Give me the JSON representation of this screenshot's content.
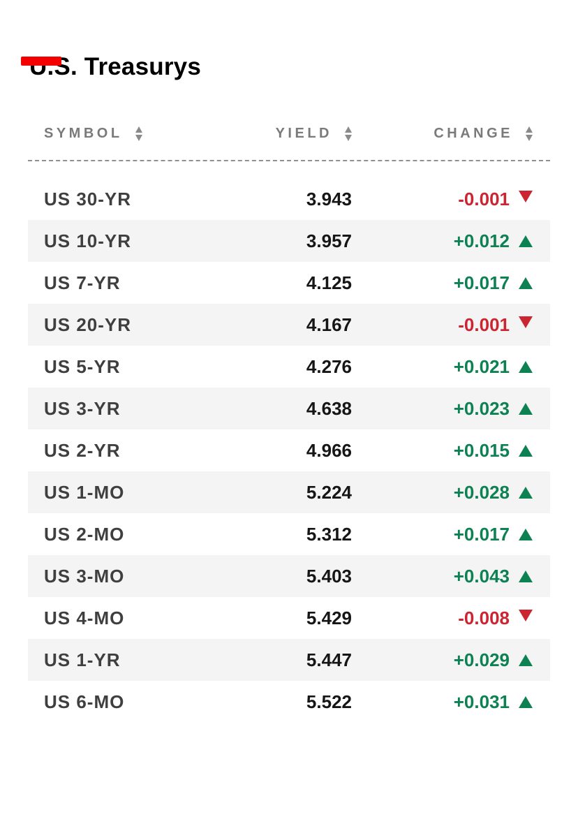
{
  "page": {
    "title": "U.S. Treasurys"
  },
  "indicator": {
    "color": "#f40000"
  },
  "table": {
    "columns": [
      {
        "label": "SYMBOL",
        "sortable": true
      },
      {
        "label": "YIELD",
        "sortable": true
      },
      {
        "label": "CHANGE",
        "sortable": true
      }
    ],
    "rows": [
      {
        "symbol": "US 30-YR",
        "yield": "3.943",
        "change": "-0.001",
        "direction": "down"
      },
      {
        "symbol": "US 10-YR",
        "yield": "3.957",
        "change": "+0.012",
        "direction": "up"
      },
      {
        "symbol": "US 7-YR",
        "yield": "4.125",
        "change": "+0.017",
        "direction": "up"
      },
      {
        "symbol": "US 20-YR",
        "yield": "4.167",
        "change": "-0.001",
        "direction": "down"
      },
      {
        "symbol": "US 5-YR",
        "yield": "4.276",
        "change": "+0.021",
        "direction": "up"
      },
      {
        "symbol": "US 3-YR",
        "yield": "4.638",
        "change": "+0.023",
        "direction": "up"
      },
      {
        "symbol": "US 2-YR",
        "yield": "4.966",
        "change": "+0.015",
        "direction": "up"
      },
      {
        "symbol": "US 1-MO",
        "yield": "5.224",
        "change": "+0.028",
        "direction": "up"
      },
      {
        "symbol": "US 2-MO",
        "yield": "5.312",
        "change": "+0.017",
        "direction": "up"
      },
      {
        "symbol": "US 3-MO",
        "yield": "5.403",
        "change": "+0.043",
        "direction": "up"
      },
      {
        "symbol": "US 4-MO",
        "yield": "5.429",
        "change": "-0.008",
        "direction": "down"
      },
      {
        "symbol": "US 1-YR",
        "yield": "5.447",
        "change": "+0.029",
        "direction": "up"
      },
      {
        "symbol": "US 6-MO",
        "yield": "5.522",
        "change": "+0.031",
        "direction": "up"
      }
    ]
  },
  "colors": {
    "up": "#0e8153",
    "down": "#cb2532",
    "row_alt_bg": "#f4f4f4",
    "header_text": "#7a7a7a",
    "symbol_text": "#3f3f3f",
    "value_text": "#161616"
  }
}
